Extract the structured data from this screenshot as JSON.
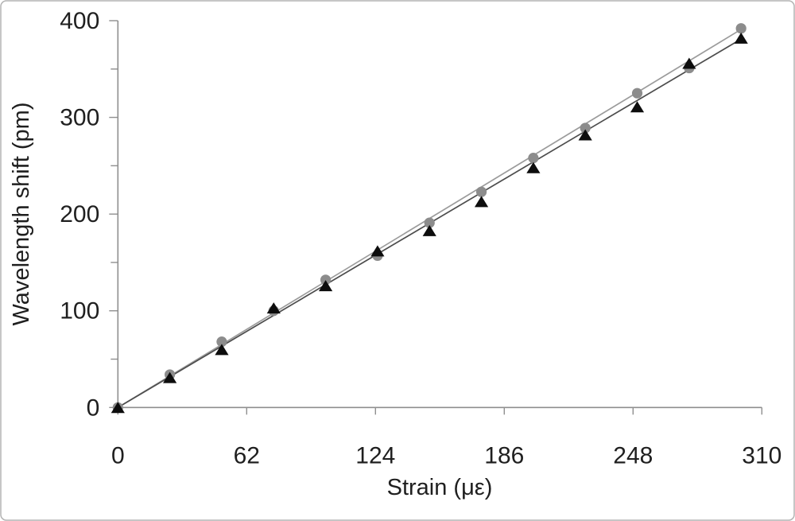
{
  "chart_data": {
    "type": "scatter",
    "title": "",
    "xlabel": "Strain (με)",
    "ylabel": "Wavelength shift (pm)",
    "xlim": [
      0,
      310
    ],
    "ylim": [
      0,
      400
    ],
    "x_tick_labels": [
      0,
      62,
      124,
      186,
      248,
      310
    ],
    "y_tick_labels_major": [
      0,
      100,
      200,
      300,
      400
    ],
    "y_ticks_minor": [
      50,
      150,
      250,
      350
    ],
    "grid": false,
    "legend": "none",
    "x": [
      0,
      25,
      50,
      75,
      100,
      125,
      150,
      175,
      200,
      225,
      250,
      275,
      300
    ],
    "series": [
      {
        "name": "gray-circle-series",
        "marker": "circle",
        "marker_color": "#8c8c8c",
        "values": [
          0,
          34,
          68,
          100,
          132,
          157,
          191,
          223,
          258,
          289,
          325,
          351,
          392
        ]
      },
      {
        "name": "black-triangle-series",
        "marker": "triangle",
        "marker_color": "#0d0d0d",
        "values": [
          0,
          31,
          60,
          103,
          126,
          162,
          183,
          213,
          248,
          282,
          311,
          356,
          382
        ]
      }
    ],
    "trendlines": [
      {
        "series": "gray-circle-series",
        "color": "#9b9b9b",
        "from": [
          0,
          0
        ],
        "to": [
          300,
          391
        ]
      },
      {
        "series": "black-triangle-series",
        "color": "#4d4d4d",
        "from": [
          0,
          0
        ],
        "to": [
          300,
          381
        ]
      }
    ],
    "colors": {
      "axis": "#8f8f8f",
      "text": "#1f1f1f",
      "frame_border": "#b3b3b3",
      "background": "#ffffff"
    }
  }
}
